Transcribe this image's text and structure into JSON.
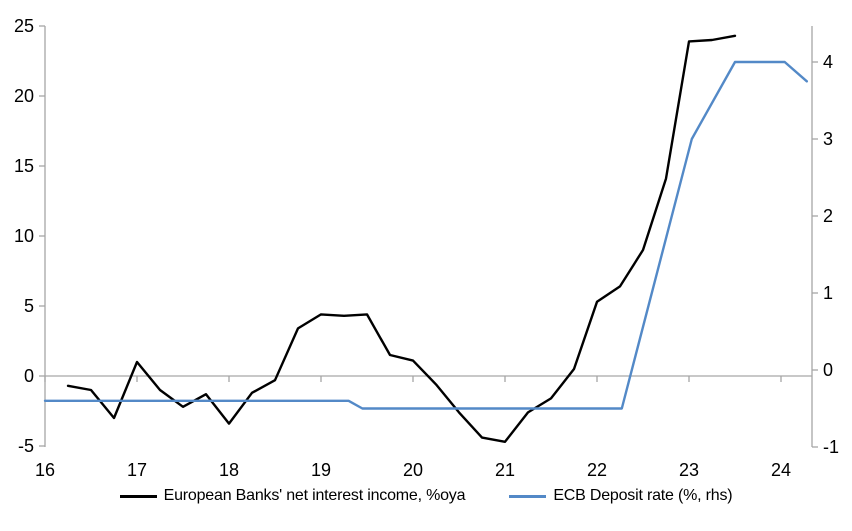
{
  "chart_data": {
    "type": "line",
    "title": "",
    "xlabel": "",
    "ylabel_left": "",
    "ylabel_right": "",
    "grid": "zero-line-only",
    "legend_position": "bottom-center",
    "axis_color": "#a6a6a6",
    "background_color": "#ffffff",
    "x_axis": {
      "ticks": [
        16,
        17,
        18,
        19,
        20,
        21,
        22,
        23,
        24
      ],
      "range": [
        16,
        24.34
      ]
    },
    "left_axis": {
      "ticks": [
        25,
        20,
        15,
        10,
        5,
        0,
        -5
      ],
      "range": [
        -5.1,
        25
      ]
    },
    "right_axis": {
      "ticks": [
        4,
        3,
        2,
        1,
        0,
        -1
      ],
      "range": [
        -1,
        4.47
      ]
    },
    "series": [
      {
        "name": "European Banks' net interest income, %oya",
        "color": "#000000",
        "axis": "left",
        "points": [
          [
            16.25,
            -0.7
          ],
          [
            16.5,
            -1.0
          ],
          [
            16.75,
            -3.0
          ],
          [
            17.0,
            1.0
          ],
          [
            17.25,
            -1.0
          ],
          [
            17.5,
            -2.2
          ],
          [
            17.75,
            -1.3
          ],
          [
            18.0,
            -3.4
          ],
          [
            18.25,
            -1.2
          ],
          [
            18.5,
            -0.3
          ],
          [
            18.75,
            3.4
          ],
          [
            19.0,
            4.4
          ],
          [
            19.25,
            4.3
          ],
          [
            19.5,
            4.4
          ],
          [
            19.75,
            1.5
          ],
          [
            20.0,
            1.1
          ],
          [
            20.25,
            -0.6
          ],
          [
            20.5,
            -2.6
          ],
          [
            20.75,
            -4.4
          ],
          [
            21.0,
            -4.7
          ],
          [
            21.25,
            -2.6
          ],
          [
            21.5,
            -1.6
          ],
          [
            21.75,
            0.5
          ],
          [
            22.0,
            5.3
          ],
          [
            22.25,
            6.4
          ],
          [
            22.5,
            9.0
          ],
          [
            22.75,
            14.1
          ],
          [
            23.0,
            23.9
          ],
          [
            23.25,
            24.0
          ],
          [
            23.5,
            24.3
          ]
        ]
      },
      {
        "name": "ECB Deposit rate (%, rhs)",
        "color": "#5389c7",
        "axis": "right",
        "points": [
          [
            16.0,
            -0.4
          ],
          [
            19.3,
            -0.4
          ],
          [
            19.45,
            -0.5
          ],
          [
            22.27,
            -0.5
          ],
          [
            23.03,
            3.0
          ],
          [
            23.5,
            4.0
          ],
          [
            24.04,
            4.0
          ],
          [
            24.28,
            3.75
          ]
        ]
      }
    ]
  }
}
